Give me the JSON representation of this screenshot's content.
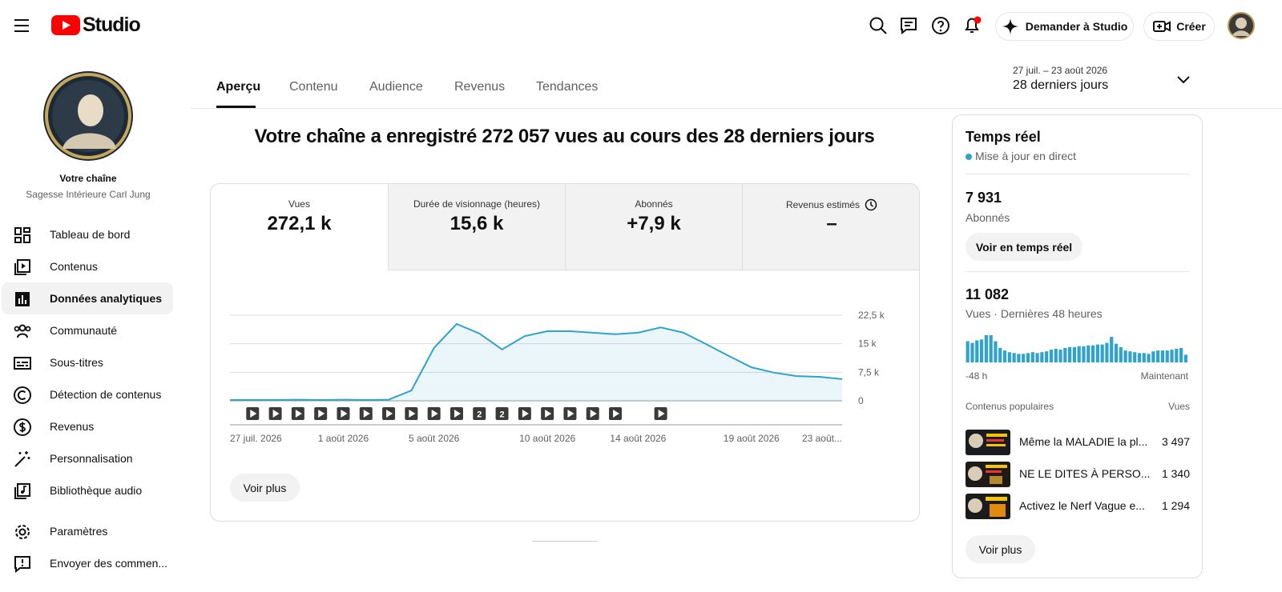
{
  "header": {
    "logo": "Studio",
    "ask_button": "Demander à Studio",
    "create_button": "Créer"
  },
  "sidebar": {
    "channel_label": "Votre chaîne",
    "channel_name": "Sagesse Intérieure Carl Jung",
    "nav": [
      "Tableau de bord",
      "Contenus",
      "Données analytiques",
      "Communauté",
      "Sous-titres",
      "Détection de contenus",
      "Revenus",
      "Personnalisation",
      "Bibliothèque audio"
    ],
    "bottom_nav": [
      "Paramètres",
      "Envoyer des commen..."
    ]
  },
  "tabs": [
    "Aperçu",
    "Contenu",
    "Audience",
    "Revenus",
    "Tendances"
  ],
  "date_range": {
    "range": "27 juil. – 23 août 2026",
    "label": "28 derniers jours"
  },
  "headline": "Votre chaîne a enregistré 272 057 vues au cours des 28 derniers jours",
  "metrics": [
    {
      "label": "Vues",
      "value": "272,1 k"
    },
    {
      "label": "Durée de visionnage (heures)",
      "value": "15,6 k"
    },
    {
      "label": "Abonnés",
      "value": "+7,9 k"
    },
    {
      "label": "Revenus estimés",
      "value": "–"
    }
  ],
  "chart_data": {
    "type": "line",
    "categories": [
      "27 juil. 2026",
      null,
      null,
      null,
      null,
      "1 août 2026",
      null,
      null,
      null,
      "5 août 2026",
      null,
      null,
      null,
      null,
      "10 août 2026",
      null,
      null,
      null,
      "14 août 2026",
      null,
      null,
      null,
      null,
      "19 août 2026",
      null,
      null,
      null,
      "23 août..."
    ],
    "values": [
      200,
      200,
      200,
      300,
      200,
      300,
      200,
      300,
      2700,
      13900,
      20200,
      17700,
      13500,
      17000,
      18300,
      18300,
      17900,
      17500,
      17900,
      19300,
      17900,
      14900,
      11800,
      8800,
      7400,
      6500,
      6300,
      5700
    ],
    "color": "#2fa3cc",
    "video_counts": [
      null,
      1,
      1,
      1,
      1,
      1,
      1,
      1,
      1,
      1,
      1,
      2,
      2,
      1,
      1,
      1,
      1,
      1,
      null,
      1,
      null,
      null,
      null,
      null,
      null,
      null,
      null,
      null
    ],
    "ylim": [
      0,
      22500
    ],
    "yticks": [
      0,
      {
        "value": 7500,
        "label": "7,5 k"
      },
      {
        "value": 15000,
        "label": "15 k"
      },
      {
        "value": 22500,
        "label": "22,5 k"
      }
    ],
    "grid": true
  },
  "chart_button": "Voir plus",
  "realtime": {
    "title": "Temps réel",
    "status": "Mise à jour en direct",
    "subscribers": "7 931",
    "subscribers_label": "Abonnés",
    "realtime_button": "Voir en temps réel",
    "views": "11 082",
    "views_label": "Vues · Dernières 48 heures",
    "views_48h": {
      "type": "bar",
      "values": [
        338,
        311,
        352,
        366,
        434,
        434,
        338,
        230,
        190,
        163,
        149,
        136,
        136,
        149,
        163,
        149,
        163,
        176,
        203,
        217,
        203,
        230,
        244,
        244,
        258,
        258,
        271,
        271,
        285,
        285,
        312,
        407,
        298,
        244,
        190,
        176,
        163,
        149,
        149,
        136,
        176,
        190,
        190,
        190,
        203,
        217,
        230,
        122
      ],
      "color": "#2fa3cc",
      "start_label": "-48 h",
      "end_label": "Maintenant"
    },
    "top_content_label": "Contenus populaires",
    "top_views_label": "Vues",
    "top_content": [
      {
        "title": "Même la MALADIE la pl...",
        "views": "3 497"
      },
      {
        "title": "NE LE DITES À PERSO...",
        "views": "1 340"
      },
      {
        "title": "Activez le Nerf Vague e...",
        "views": "1 294"
      }
    ],
    "more_button": "Voir plus"
  }
}
